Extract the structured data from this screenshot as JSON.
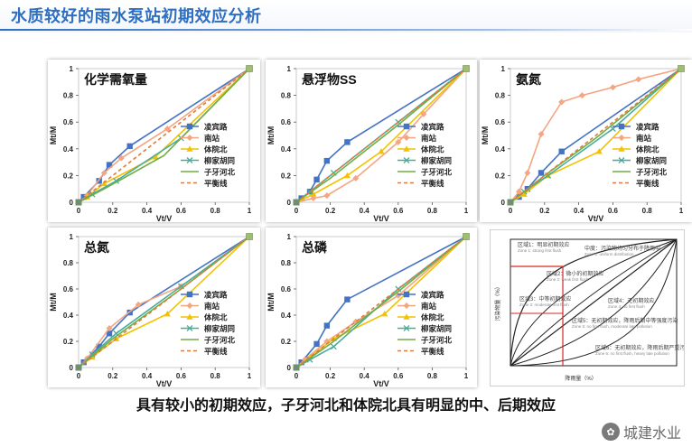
{
  "slide_title": "水质较好的雨水泵站初期效应分析",
  "caption": "具有较小的初期效应，子牙河北和体院北具有明显的中、后期效应",
  "watermark": "城建水业",
  "chart_data": [
    {
      "type": "line",
      "title": "化学需氧量",
      "xlabel": "Vt/V",
      "ylabel": "Mt/M",
      "xlim": [
        0,
        1
      ],
      "ylim": [
        0,
        1
      ],
      "xticks": [
        "0",
        "0.2",
        "0.4",
        "0.6",
        "0.8",
        "1"
      ],
      "yticks": [
        "0",
        "0.2",
        "0.4",
        "0.6",
        "0.8",
        "1"
      ],
      "legend_position": "right",
      "series": [
        {
          "name": "凌宾路",
          "color": "#4472c4",
          "marker": "square",
          "points": [
            [
              0,
              0
            ],
            [
              0.03,
              0.04
            ],
            [
              0.12,
              0.16
            ],
            [
              0.18,
              0.28
            ],
            [
              0.3,
              0.42
            ],
            [
              1,
              1
            ]
          ]
        },
        {
          "name": "南站",
          "color": "#f4a582",
          "marker": "diamond",
          "points": [
            [
              0,
              0
            ],
            [
              0.05,
              0.05
            ],
            [
              0.15,
              0.22
            ],
            [
              0.25,
              0.33
            ],
            [
              0.52,
              0.55
            ],
            [
              1,
              1
            ]
          ]
        },
        {
          "name": "体院北",
          "color": "#f2c200",
          "marker": "triangle",
          "points": [
            [
              0,
              0
            ],
            [
              0.05,
              0.04
            ],
            [
              0.15,
              0.14
            ],
            [
              0.45,
              0.34
            ],
            [
              1,
              1
            ]
          ]
        },
        {
          "name": "柳家胡同",
          "color": "#4bac9c",
          "marker": "x",
          "points": [
            [
              0,
              0
            ],
            [
              0.08,
              0.06
            ],
            [
              0.22,
              0.16
            ],
            [
              0.6,
              0.48
            ],
            [
              1,
              1
            ]
          ]
        },
        {
          "name": "子牙河北",
          "color": "#70ad47",
          "marker": "none",
          "points": [
            [
              0,
              0
            ],
            [
              0.15,
              0.1
            ],
            [
              0.5,
              0.35
            ],
            [
              1,
              1
            ]
          ]
        },
        {
          "name": "平衡线",
          "color": "#e07b39",
          "marker": "dash",
          "points": [
            [
              0,
              0
            ],
            [
              1,
              1
            ]
          ]
        }
      ]
    },
    {
      "type": "line",
      "title": "悬浮物SS",
      "xlabel": "Vt/V",
      "ylabel": "Mt/M",
      "xlim": [
        0,
        1
      ],
      "ylim": [
        0,
        1
      ],
      "xticks": [
        "0",
        "0.2",
        "0.4",
        "0.6",
        "0.8",
        "1"
      ],
      "yticks": [
        "0",
        "0.2",
        "0.4",
        "0.6",
        "0.8",
        "1"
      ],
      "legend_position": "right",
      "series": [
        {
          "name": "凌宾路",
          "color": "#4472c4",
          "marker": "square",
          "points": [
            [
              0,
              0
            ],
            [
              0.03,
              0.03
            ],
            [
              0.08,
              0.08
            ],
            [
              0.12,
              0.17
            ],
            [
              0.18,
              0.31
            ],
            [
              0.3,
              0.45
            ],
            [
              1,
              1
            ]
          ]
        },
        {
          "name": "南站",
          "color": "#f4a582",
          "marker": "diamond",
          "points": [
            [
              0,
              0
            ],
            [
              0.1,
              0.03
            ],
            [
              0.18,
              0.05
            ],
            [
              0.35,
              0.18
            ],
            [
              0.6,
              0.45
            ],
            [
              0.75,
              0.66
            ],
            [
              1,
              1
            ]
          ]
        },
        {
          "name": "体院北",
          "color": "#f2c200",
          "marker": "triangle",
          "points": [
            [
              0,
              0
            ],
            [
              0.1,
              0.06
            ],
            [
              0.3,
              0.2
            ],
            [
              0.5,
              0.38
            ],
            [
              1,
              1
            ]
          ]
        },
        {
          "name": "柳家胡同",
          "color": "#4bac9c",
          "marker": "x",
          "points": [
            [
              0,
              0
            ],
            [
              0.08,
              0.08
            ],
            [
              0.22,
              0.22
            ],
            [
              0.6,
              0.6
            ],
            [
              1,
              1
            ]
          ]
        },
        {
          "name": "子牙河北",
          "color": "#70ad47",
          "marker": "none",
          "points": [
            [
              0,
              0
            ],
            [
              0.2,
              0.18
            ],
            [
              0.6,
              0.58
            ],
            [
              1,
              1
            ]
          ]
        },
        {
          "name": "平衡线",
          "color": "#e07b39",
          "marker": "dash",
          "points": [
            [
              0,
              0
            ],
            [
              1,
              1
            ]
          ]
        }
      ]
    },
    {
      "type": "line",
      "title": "氨氮",
      "xlabel": "Vt/V",
      "ylabel": "Mt/M",
      "xlim": [
        0,
        1
      ],
      "ylim": [
        0,
        1
      ],
      "xticks": [
        "0",
        "0.2",
        "0.4",
        "0.6",
        "0.8",
        "1"
      ],
      "yticks": [
        "0",
        "0.2",
        "0.4",
        "0.6",
        "0.8",
        "1"
      ],
      "legend_position": "right",
      "series": [
        {
          "name": "凌宾路",
          "color": "#4472c4",
          "marker": "square",
          "points": [
            [
              0,
              0
            ],
            [
              0.05,
              0.04
            ],
            [
              0.1,
              0.1
            ],
            [
              0.18,
              0.22
            ],
            [
              0.3,
              0.38
            ],
            [
              1,
              1
            ]
          ]
        },
        {
          "name": "南站",
          "color": "#f4a582",
          "marker": "diamond",
          "points": [
            [
              0,
              0
            ],
            [
              0.05,
              0.08
            ],
            [
              0.1,
              0.22
            ],
            [
              0.18,
              0.51
            ],
            [
              0.3,
              0.75
            ],
            [
              0.42,
              0.8
            ],
            [
              0.6,
              0.86
            ],
            [
              0.75,
              0.92
            ],
            [
              1,
              1
            ]
          ]
        },
        {
          "name": "体院北",
          "color": "#f2c200",
          "marker": "triangle",
          "points": [
            [
              0,
              0
            ],
            [
              0.08,
              0.06
            ],
            [
              0.22,
              0.2
            ],
            [
              0.52,
              0.38
            ],
            [
              1,
              1
            ]
          ]
        },
        {
          "name": "柳家胡同",
          "color": "#4bac9c",
          "marker": "x",
          "points": [
            [
              0,
              0
            ],
            [
              0.08,
              0.08
            ],
            [
              0.22,
              0.2
            ],
            [
              0.6,
              0.55
            ],
            [
              1,
              1
            ]
          ]
        },
        {
          "name": "子牙河北",
          "color": "#70ad47",
          "marker": "none",
          "points": [
            [
              0,
              0
            ],
            [
              0.2,
              0.2
            ],
            [
              0.5,
              0.48
            ],
            [
              1,
              1
            ]
          ]
        },
        {
          "name": "平衡线",
          "color": "#e07b39",
          "marker": "dash",
          "points": [
            [
              0,
              0
            ],
            [
              1,
              1
            ]
          ]
        }
      ]
    },
    {
      "type": "line",
      "title": "总氮",
      "xlabel": "Vt/V",
      "ylabel": "Mt/M",
      "xlim": [
        0,
        1
      ],
      "ylim": [
        0,
        1
      ],
      "xticks": [
        "0",
        "0.2",
        "0.4",
        "0.6",
        "0.8",
        "1"
      ],
      "yticks": [
        "0",
        "0.2",
        "0.4",
        "0.6",
        "0.8",
        "1"
      ],
      "legend_position": "right",
      "series": [
        {
          "name": "凌宾路",
          "color": "#4472c4",
          "marker": "square",
          "points": [
            [
              0,
              0
            ],
            [
              0.03,
              0.04
            ],
            [
              0.12,
              0.16
            ],
            [
              0.18,
              0.26
            ],
            [
              0.3,
              0.42
            ],
            [
              1,
              1
            ]
          ]
        },
        {
          "name": "南站",
          "color": "#f4a582",
          "marker": "diamond",
          "points": [
            [
              0,
              0
            ],
            [
              0.05,
              0.07
            ],
            [
              0.18,
              0.3
            ],
            [
              0.35,
              0.48
            ],
            [
              0.6,
              0.62
            ],
            [
              1,
              1
            ]
          ]
        },
        {
          "name": "体院北",
          "color": "#f2c200",
          "marker": "triangle",
          "points": [
            [
              0,
              0
            ],
            [
              0.08,
              0.08
            ],
            [
              0.22,
              0.22
            ],
            [
              0.52,
              0.41
            ],
            [
              1,
              1
            ]
          ]
        },
        {
          "name": "柳家胡同",
          "color": "#4bac9c",
          "marker": "x",
          "points": [
            [
              0,
              0
            ],
            [
              0.08,
              0.1
            ],
            [
              0.22,
              0.26
            ],
            [
              0.6,
              0.62
            ],
            [
              1,
              1
            ]
          ]
        },
        {
          "name": "子牙河北",
          "color": "#70ad47",
          "marker": "none",
          "points": [
            [
              0,
              0
            ],
            [
              0.2,
              0.22
            ],
            [
              0.6,
              0.6
            ],
            [
              1,
              1
            ]
          ]
        },
        {
          "name": "平衡线",
          "color": "#e07b39",
          "marker": "dash",
          "points": [
            [
              0,
              0
            ],
            [
              1,
              1
            ]
          ]
        }
      ]
    },
    {
      "type": "line",
      "title": "总磷",
      "xlabel": "Vt/V",
      "ylabel": "Mt/M",
      "xlim": [
        0,
        1
      ],
      "ylim": [
        0,
        1
      ],
      "xticks": [
        "0",
        "0.2",
        "0.4",
        "0.6",
        "0.8",
        "1"
      ],
      "yticks": [
        "0",
        "0.2",
        "0.4",
        "0.6",
        "0.8",
        "1"
      ],
      "legend_position": "right",
      "series": [
        {
          "name": "凌宾路",
          "color": "#4472c4",
          "marker": "square",
          "points": [
            [
              0,
              0
            ],
            [
              0.03,
              0.04
            ],
            [
              0.12,
              0.18
            ],
            [
              0.18,
              0.32
            ],
            [
              0.3,
              0.52
            ],
            [
              1,
              1
            ]
          ]
        },
        {
          "name": "南站",
          "color": "#f4a582",
          "marker": "diamond",
          "points": [
            [
              0,
              0
            ],
            [
              0.05,
              0.06
            ],
            [
              0.18,
              0.2
            ],
            [
              0.35,
              0.35
            ],
            [
              0.6,
              0.55
            ],
            [
              1,
              1
            ]
          ]
        },
        {
          "name": "体院北",
          "color": "#f2c200",
          "marker": "triangle",
          "points": [
            [
              0,
              0
            ],
            [
              0.08,
              0.08
            ],
            [
              0.22,
              0.22
            ],
            [
              0.52,
              0.41
            ],
            [
              1,
              1
            ]
          ]
        },
        {
          "name": "柳家胡同",
          "color": "#4bac9c",
          "marker": "x",
          "points": [
            [
              0,
              0
            ],
            [
              0.08,
              0.06
            ],
            [
              0.22,
              0.16
            ],
            [
              0.6,
              0.6
            ],
            [
              1,
              1
            ]
          ]
        },
        {
          "name": "子牙河北",
          "color": "#70ad47",
          "marker": "none",
          "points": [
            [
              0,
              0
            ],
            [
              0.2,
              0.18
            ],
            [
              0.6,
              0.58
            ],
            [
              1,
              1
            ]
          ]
        },
        {
          "name": "平衡线",
          "color": "#e07b39",
          "marker": "dash",
          "points": [
            [
              0,
              0
            ],
            [
              1,
              1
            ]
          ]
        }
      ]
    }
  ],
  "reference_diagram": {
    "ylabel": "污染物量（%）",
    "xlabel": "降雨量（%）",
    "zones": [
      {
        "label": "区域1：明显初期效应",
        "sublabel": "Zone 1: strong first flush"
      },
      {
        "label": "中度：污染物均匀分布于降雨中",
        "sublabel": "Zone 2: uniform distribution"
      },
      {
        "label": "区域2：微小的初期效应",
        "sublabel": "Zone 2: weak first flush"
      },
      {
        "label": "区域3：中等初期效应",
        "sublabel": "Zone 3: moderate first flush"
      },
      {
        "label": "区域4：无初期效应",
        "sublabel": "Zone 4: no first flush"
      },
      {
        "label": "区域5：无初期效应，降雨后期中等强度污染",
        "sublabel": "Zone 5: no first flush, moderate late pollution"
      },
      {
        "label": "区域6：无初期效应，降雨后期严重污染",
        "sublabel": "Zone 6: no first flush, heavy late pollution"
      }
    ]
  }
}
